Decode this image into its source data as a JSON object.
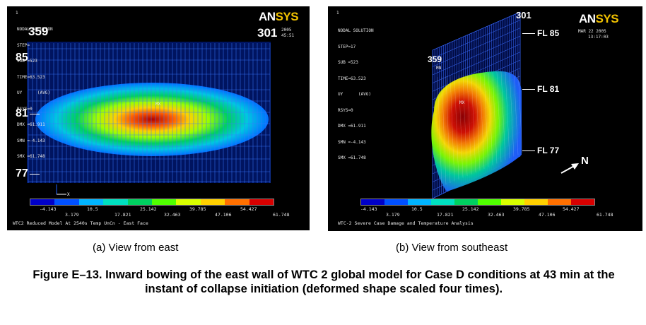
{
  "panel_a": {
    "corner_number": "1",
    "info_lines": [
      "NODAL SOLUTION",
      "STEP=",
      "SUB =523",
      "TIME=63.523",
      "UY      (AVG)",
      "RSYS=0",
      "DMX =61.911",
      "SMN =-4.143",
      "SMX =61.748"
    ],
    "date_frag": "2005",
    "time_frag": "45:51",
    "logo_an": "AN",
    "logo_sys": "SYS",
    "overlay_top_left": "359",
    "overlay_top_right": "301",
    "floor_top": "85",
    "floor_mid": "81",
    "floor_bot": "77",
    "mx_label": "MX",
    "legend_values_top": [
      "-4.143",
      "10.5",
      "25.142",
      "39.785",
      "54.427"
    ],
    "legend_values_bottom": [
      "3.179",
      "17.821",
      "32.463",
      "47.106",
      "61.748"
    ],
    "bottom_text": "WTC2 Reduced Model At 2540s Temp UnCn - East Face",
    "caption": "(a) View from east"
  },
  "panel_b": {
    "corner_number": "1",
    "info_lines": [
      "NODAL SOLUTION",
      "STEP=17",
      "SUB =523",
      "TIME=63.523",
      "UY      (AVG)",
      "RSYS=0",
      "DMX =61.911",
      "SMN =-4.143",
      "SMX =61.748"
    ],
    "date": "MAR 22 2005",
    "time": "13:17:03",
    "logo_an": "AN",
    "logo_sys": "SYS",
    "label_301": "301",
    "label_359": "359",
    "mn_label": "MN",
    "mx_label": "MX",
    "fl_top": "FL 85",
    "fl_mid": "FL 81",
    "fl_bot": "FL 77",
    "north": "N",
    "legend_values_top": [
      "-4.143",
      "10.5",
      "25.142",
      "39.785",
      "54.427"
    ],
    "legend_values_bottom": [
      "3.179",
      "17.821",
      "32.463",
      "47.106",
      "61.748"
    ],
    "bottom_text": "WTC-2 Severe Case Damage and Temperature Analysis",
    "caption": "(b) View from southeast"
  },
  "legend_colors": [
    "#0000c8",
    "#0050ff",
    "#00b4ff",
    "#00e0c0",
    "#00d060",
    "#50ff00",
    "#d8ff00",
    "#ffd000",
    "#ff7000",
    "#d80000"
  ],
  "figure_caption": "Figure E–13.  Inward bowing of the east wall of WTC 2 global model for Case D conditions at 43 min at the instant of collapse initiation (deformed shape scaled four times)."
}
